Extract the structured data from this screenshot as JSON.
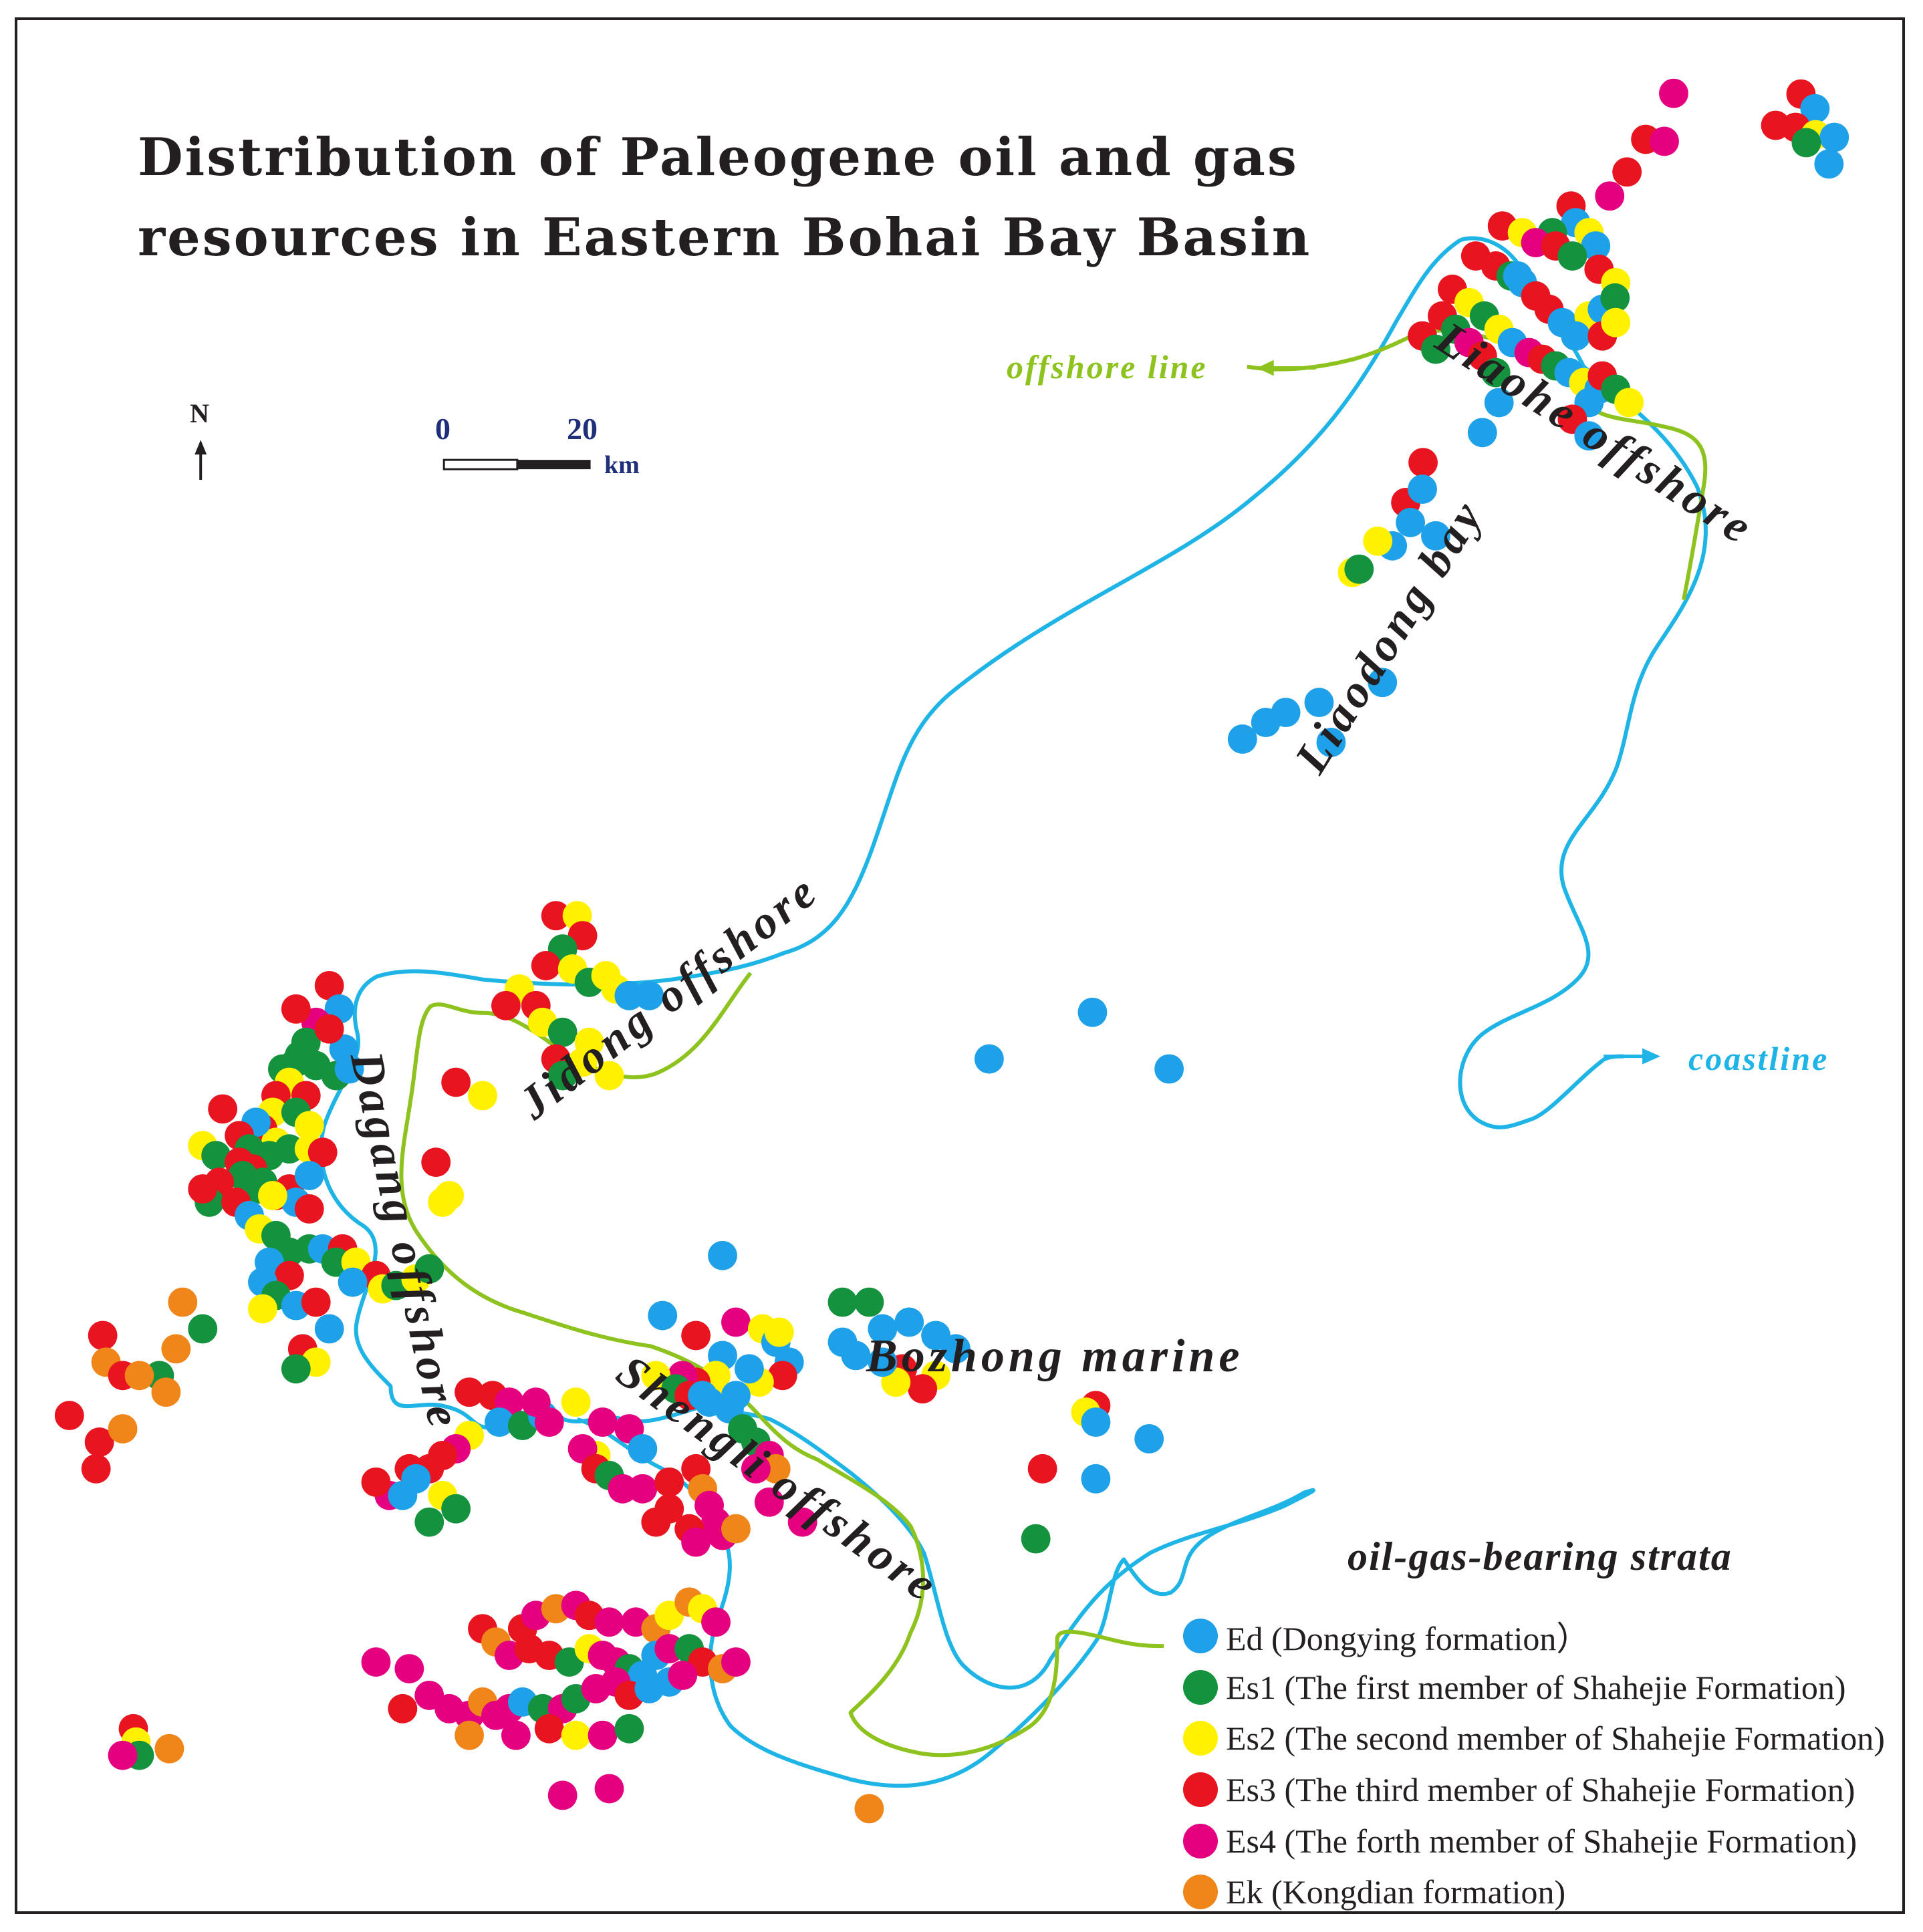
{
  "title": {
    "line1": "Distribution of Paleogene oil and gas",
    "line2": "resources in Eastern Bohai Bay Basin"
  },
  "north_arrow": {
    "label": "N"
  },
  "scale_bar": {
    "start": "0",
    "end": "20",
    "unit": "km"
  },
  "regions": {
    "liaohe": "Liaohe offshore",
    "liaodong": "Liaodong bay",
    "jidong": "Jidong offshore",
    "dagang": "Dagang offshore",
    "shengli": "Shengli offshore",
    "bozhong": "Bozhong marine"
  },
  "annotations": {
    "offshore_line": "offshore line",
    "coastline": "coastline"
  },
  "colors": {
    "coastline": "#1fb4e6",
    "offshore_line": "#8dc21f",
    "Ed": "#1ea1e9",
    "Es1": "#14923e",
    "Es2": "#fff100",
    "Es3": "#e8141f",
    "Es4": "#e4007f",
    "Ek": "#f08519"
  },
  "legend": {
    "title": "oil-gas-bearing strata",
    "items": [
      {
        "key": "Ed",
        "label": "Ed (Dongying  formation）"
      },
      {
        "key": "Es1",
        "label": "Es1 (The first member of Shahejie Formation)"
      },
      {
        "key": "Es2",
        "label": "Es2 (The second member of Shahejie Formation)"
      },
      {
        "key": "Es3",
        "label": "Es3 (The third member of Shahejie Formation)"
      },
      {
        "key": "Es4",
        "label": "Es4 (The forth member of Shahejie Formation)"
      },
      {
        "key": "Ek",
        "label": "Ek (Kongdian formation)"
      }
    ]
  }
}
